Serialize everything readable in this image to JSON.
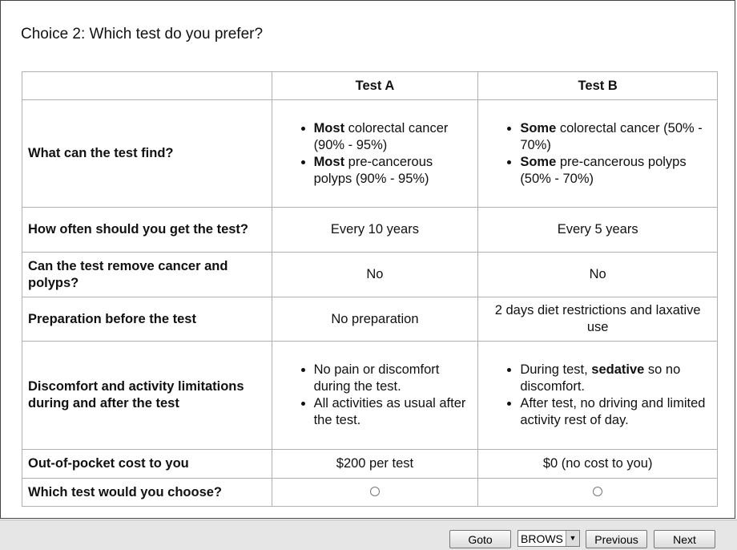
{
  "title": "Choice 2: Which test do you prefer?",
  "table": {
    "header": [
      "Test A",
      "Test B"
    ],
    "rows": [
      {
        "label": "What can the test find?",
        "cells": [
          {
            "bullets": [
              [
                {
                  "text": "Most",
                  "bold": true
                },
                {
                  "text": " colorectal cancer (90% - 95%)"
                }
              ],
              [
                {
                  "text": "Most",
                  "bold": true
                },
                {
                  "text": " pre-cancerous polyps (90% - 95%)"
                }
              ]
            ]
          },
          {
            "bullets": [
              [
                {
                  "text": "Some",
                  "bold": true
                },
                {
                  "text": " colorectal cancer (50% - 70%)"
                }
              ],
              [
                {
                  "text": "Some",
                  "bold": true
                },
                {
                  "text": " pre-cancerous polyps (50% - 70%)"
                }
              ]
            ]
          }
        ]
      },
      {
        "label": "How often should you get the test?",
        "cells": [
          "Every 10 years",
          "Every 5 years"
        ]
      },
      {
        "label": "Can the test remove cancer and polyps?",
        "cells": [
          "No",
          "No"
        ]
      },
      {
        "label": "Preparation before the test",
        "cells": [
          "No preparation",
          "2 days diet restrictions and laxative use"
        ]
      },
      {
        "label": "Discomfort and activity limitations during and after the test",
        "cells": [
          {
            "bullets": [
              [
                {
                  "text": "No pain or discomfort during the test."
                }
              ],
              [
                {
                  "text": "All activities as usual after the test."
                }
              ]
            ]
          },
          {
            "bullets": [
              [
                {
                  "text": "During test, "
                },
                {
                  "text": "sedative",
                  "bold": true
                },
                {
                  "text": " so no discomfort."
                }
              ],
              [
                {
                  "text": "After test, no driving and limited activity rest of day."
                }
              ]
            ]
          }
        ]
      },
      {
        "label": "Out-of-pocket cost to you",
        "cells": [
          "$200 per test",
          "$0 (no cost to you)"
        ]
      },
      {
        "label": "Which test would you choose?"
      }
    ]
  },
  "footer": {
    "goto": "Goto",
    "select": "BROWS",
    "previous": "Previous",
    "next": "Next"
  }
}
